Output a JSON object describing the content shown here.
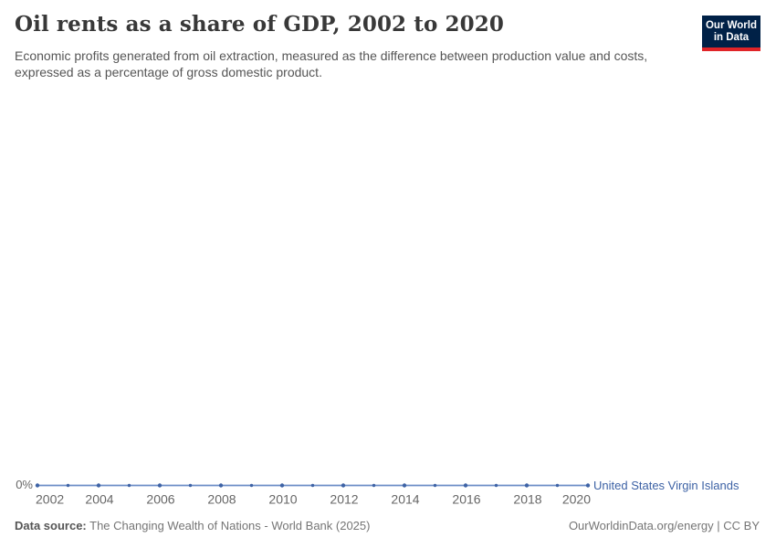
{
  "header": {
    "title": "Oil rents as a share of GDP, 2002 to 2020",
    "subtitle": "Economic profits generated from oil extraction, measured as the difference between production value and costs, expressed as a percentage of gross domestic product."
  },
  "logo": {
    "line1": "Our World",
    "line2": "in Data",
    "bg_color": "#002147",
    "stripe_color": "#e02428"
  },
  "chart_data": {
    "type": "line",
    "x": [
      2002,
      2003,
      2004,
      2005,
      2006,
      2007,
      2008,
      2009,
      2010,
      2011,
      2012,
      2013,
      2014,
      2015,
      2016,
      2017,
      2018,
      2019,
      2020
    ],
    "series": [
      {
        "name": "United States Virgin Islands",
        "values": [
          0,
          0,
          0,
          0,
          0,
          0,
          0,
          0,
          0,
          0,
          0,
          0,
          0,
          0,
          0,
          0,
          0,
          0,
          0
        ]
      }
    ],
    "unit": "%",
    "title": "Oil rents as a share of GDP, 2002 to 2020",
    "xlabel": "",
    "ylabel": "",
    "x_ticks": [
      2002,
      2004,
      2006,
      2008,
      2010,
      2012,
      2014,
      2016,
      2018,
      2020
    ],
    "y_axis": {
      "tick_labels": [
        "0%"
      ]
    },
    "grid": false,
    "legend_position": "end-of-line",
    "line_color": "#6d8ec6",
    "marker_color": "#3d62a5",
    "tick_label_color": "#666666"
  },
  "footer": {
    "source_label": "Data source:",
    "source_value": " The Changing Wealth of Nations - World Bank (2025)",
    "right_text": "OurWorldinData.org/energy | CC BY"
  }
}
